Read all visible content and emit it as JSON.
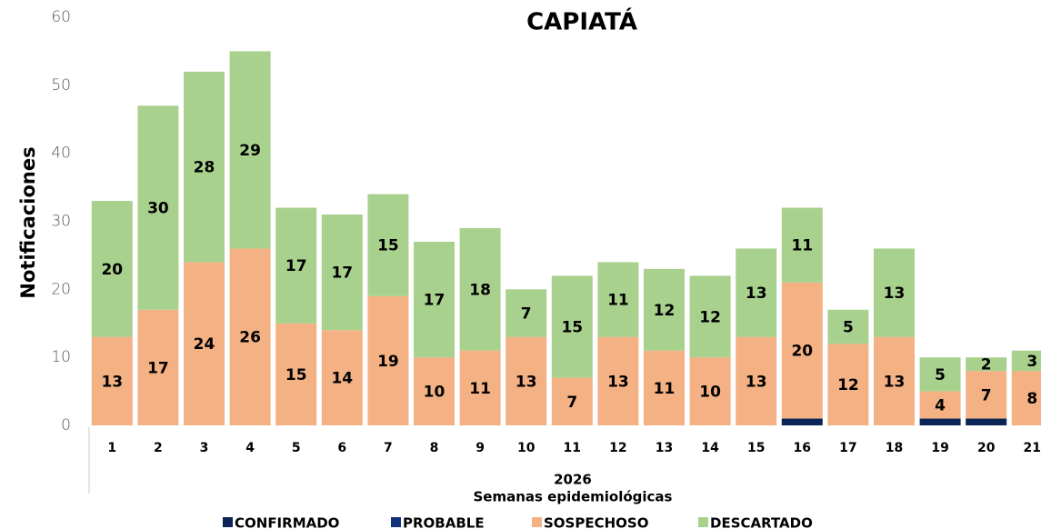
{
  "chart_data": {
    "type": "stacked_bar",
    "title": "CAPIATÁ",
    "x_label_year": "2026",
    "x_label": "Semanas epidemiológicas",
    "y_label": "Notificaciones",
    "categories": [
      "1",
      "2",
      "3",
      "4",
      "5",
      "6",
      "7",
      "8",
      "9",
      "10",
      "11",
      "12",
      "13",
      "14",
      "15",
      "16",
      "17",
      "18",
      "19",
      "20",
      "21"
    ],
    "series": [
      {
        "name": "CONFIRMADO",
        "color": "#0b2557",
        "values": [
          0,
          0,
          0,
          0,
          0,
          0,
          0,
          0,
          0,
          0,
          0,
          0,
          0,
          0,
          0,
          1,
          0,
          0,
          1,
          1,
          0
        ]
      },
      {
        "name": "PROBABLE",
        "color": "#13307a",
        "values": [
          0,
          0,
          0,
          0,
          0,
          0,
          0,
          0,
          0,
          0,
          0,
          0,
          0,
          0,
          0,
          0,
          0,
          0,
          0,
          0,
          0
        ]
      },
      {
        "name": "SOSPECHOSO",
        "color": "#f4b183",
        "values": [
          13,
          17,
          24,
          26,
          15,
          14,
          19,
          10,
          11,
          13,
          7,
          13,
          11,
          10,
          13,
          20,
          12,
          13,
          4,
          7,
          8
        ]
      },
      {
        "name": "DESCARTADO",
        "color": "#a9d18e",
        "values": [
          20,
          30,
          28,
          29,
          17,
          17,
          15,
          17,
          18,
          7,
          15,
          11,
          12,
          12,
          13,
          11,
          5,
          13,
          5,
          2,
          3
        ]
      }
    ],
    "ylim": [
      0,
      60
    ],
    "yticks": [
      0,
      10,
      20,
      30,
      40,
      50,
      60
    ]
  }
}
